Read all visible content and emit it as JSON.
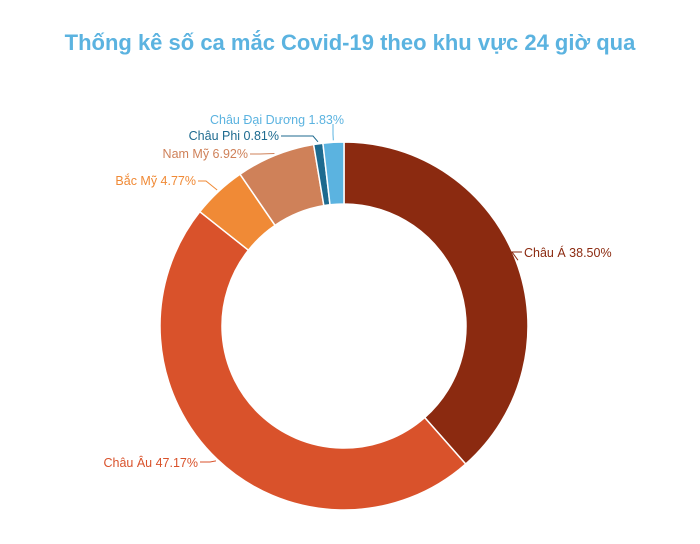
{
  "chart_data": {
    "type": "pie",
    "title": "Thống kê số ca mắc Covid-19 theo khu vực 24 giờ qua",
    "donut": true,
    "start": "top",
    "direction": "clockwise",
    "slices": [
      {
        "name": "Châu Á",
        "value": 38.5,
        "label": "Châu Á 38.50%",
        "color": "#8b2a10",
        "label_color": "#8b2a10"
      },
      {
        "name": "Châu Âu",
        "value": 47.17,
        "label": "Châu Âu 47.17%",
        "color": "#d9522b",
        "label_color": "#d9522b"
      },
      {
        "name": "Bắc Mỹ",
        "value": 4.77,
        "label": "Bắc Mỹ 4.77%",
        "color": "#f08a36",
        "label_color": "#f08a36"
      },
      {
        "name": "Nam Mỹ",
        "value": 6.92,
        "label": "Nam Mỹ 6.92%",
        "color": "#cf8159",
        "label_color": "#cf8159"
      },
      {
        "name": "Châu Phi",
        "value": 0.81,
        "label": "Châu Phi  0.81%",
        "color": "#1d6a8f",
        "label_color": "#1d6a8f"
      },
      {
        "name": "Châu Đại Dương",
        "value": 1.83,
        "label": "Châu Đại Dương 1.83%",
        "color": "#5bb3e0",
        "label_color": "#5bb3e0"
      }
    ]
  }
}
